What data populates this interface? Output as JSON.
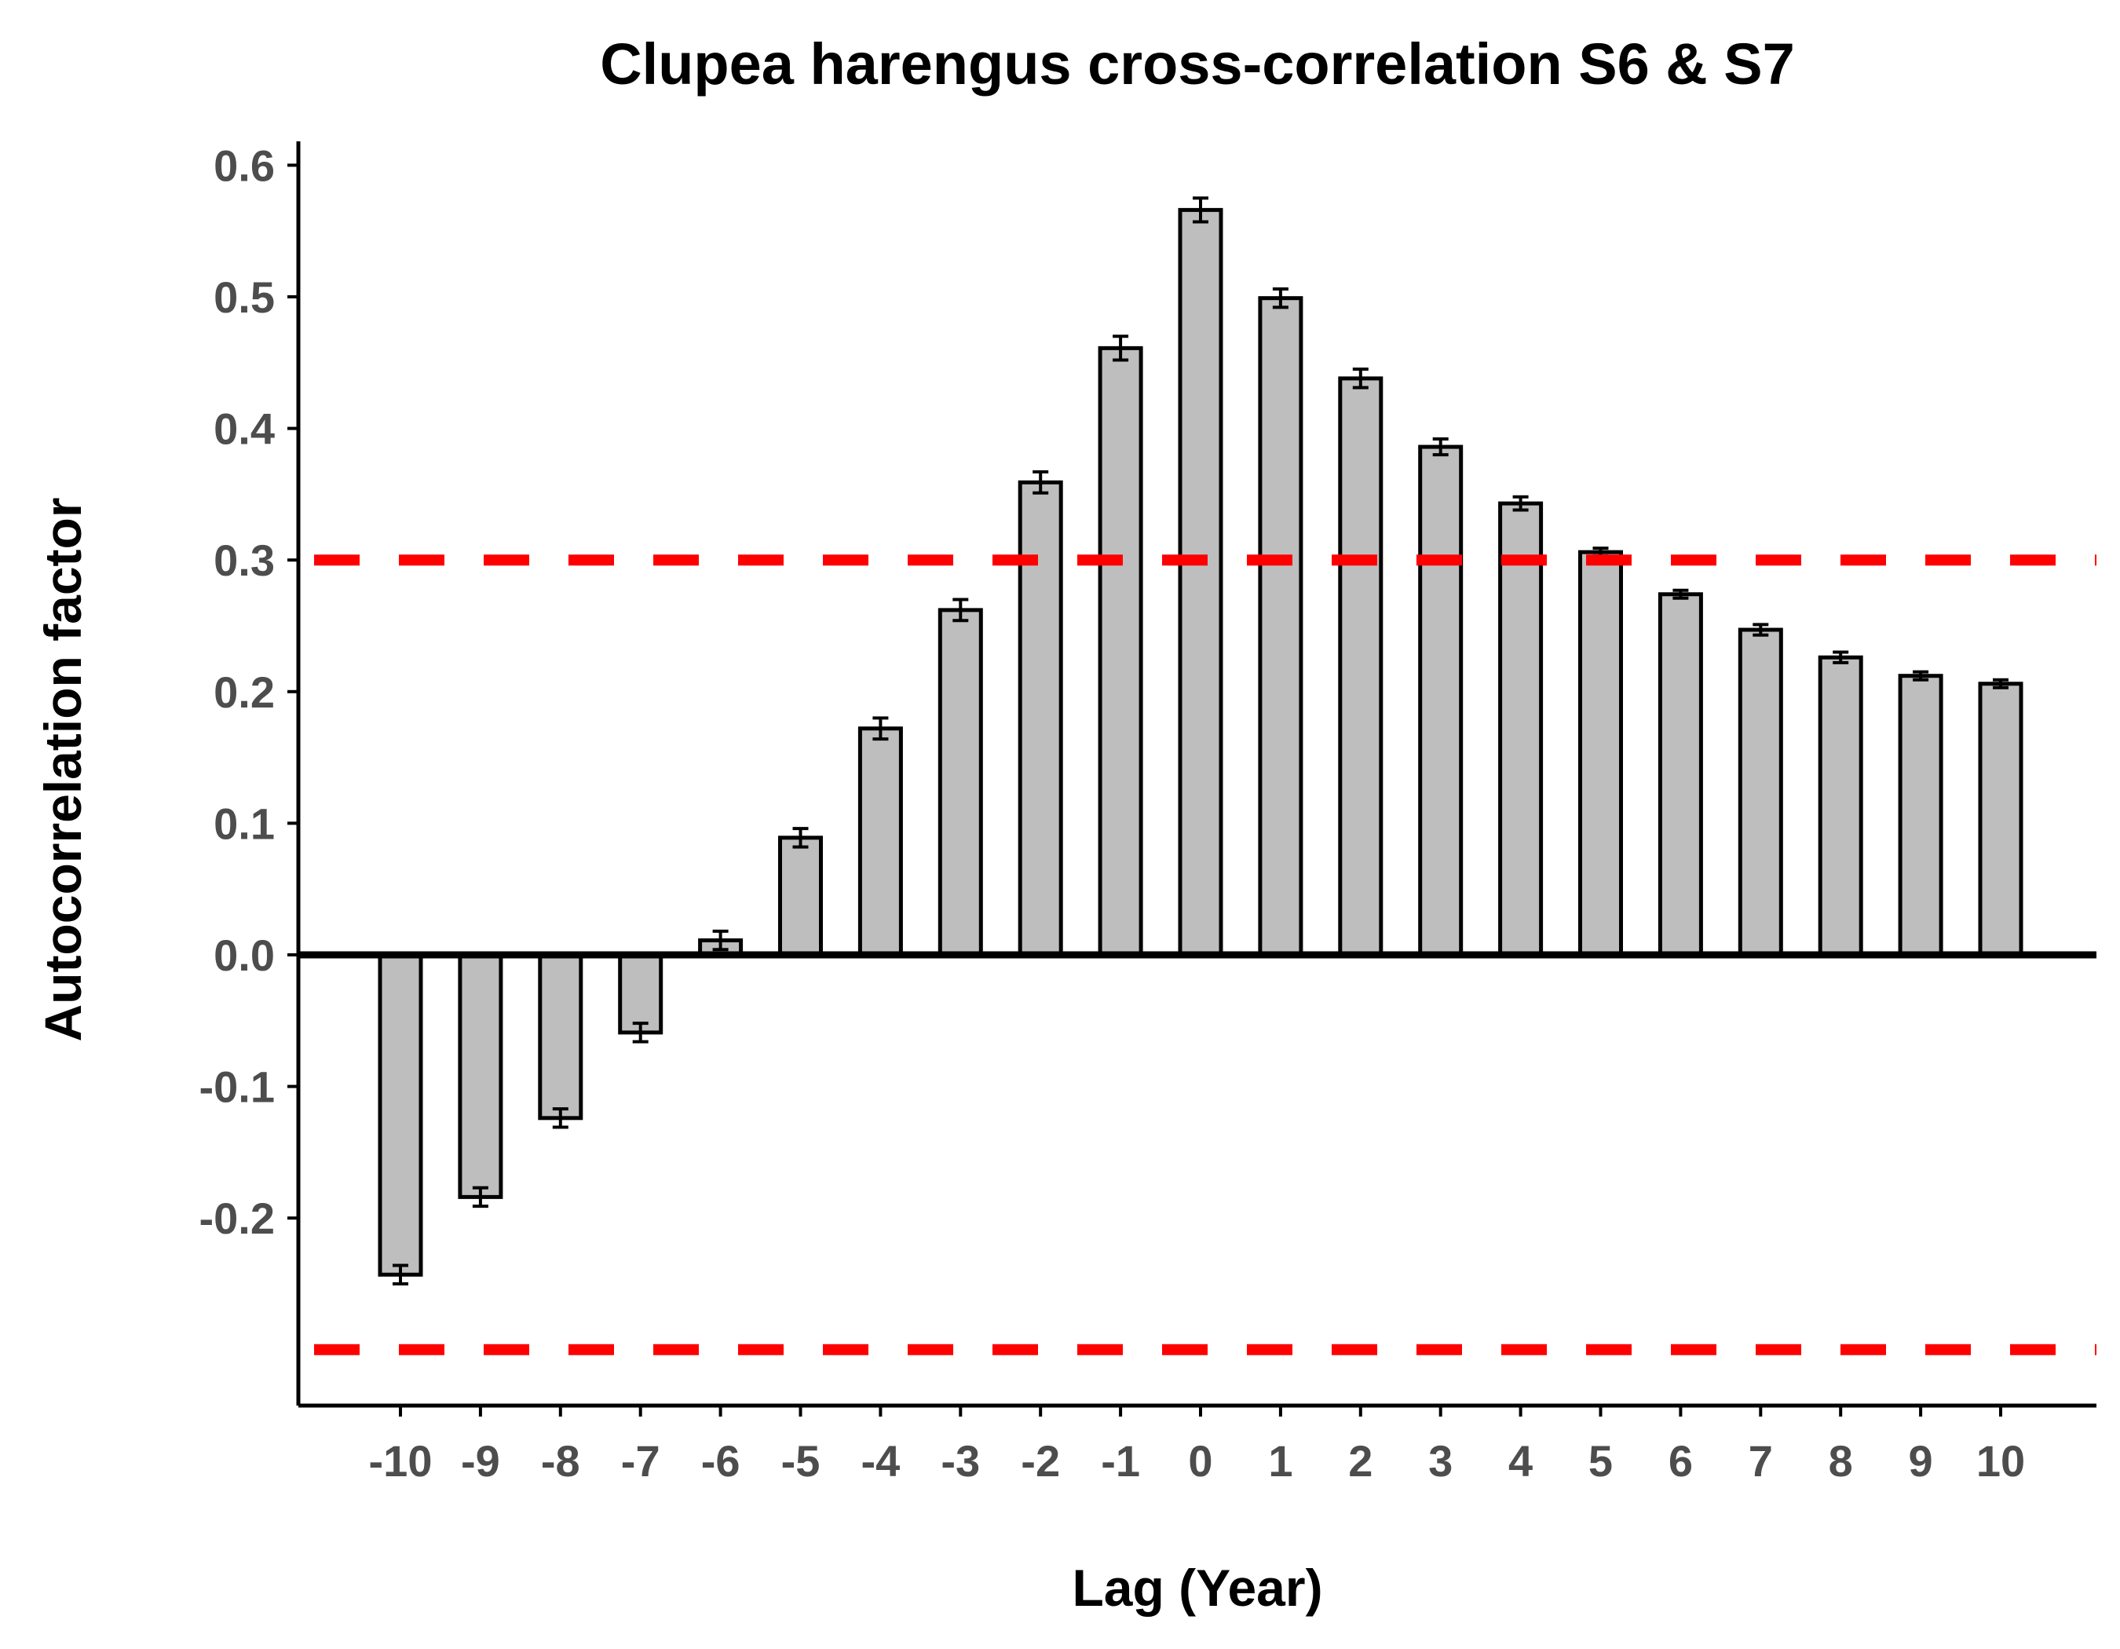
{
  "chart_data": {
    "type": "bar",
    "title": "Clupea harengus cross-correlation S6 & S7",
    "xlabel": "Lag (Year)",
    "ylabel": "Autocorrelation factor",
    "categories": [
      "-10",
      "-9",
      "-8",
      "-7",
      "-6",
      "-5",
      "-4",
      "-3",
      "-2",
      "-1",
      "0",
      "1",
      "2",
      "3",
      "4",
      "5",
      "6",
      "7",
      "8",
      "9",
      "10"
    ],
    "values": [
      -0.243,
      -0.184,
      -0.124,
      -0.059,
      0.011,
      0.089,
      0.172,
      0.262,
      0.359,
      0.461,
      0.566,
      0.499,
      0.438,
      0.386,
      0.343,
      0.306,
      0.274,
      0.247,
      0.226,
      0.212,
      0.206
    ],
    "errors": [
      0.007,
      0.007,
      0.007,
      0.007,
      0.007,
      0.007,
      0.008,
      0.008,
      0.008,
      0.009,
      0.009,
      0.007,
      0.007,
      0.006,
      0.005,
      0.003,
      0.003,
      0.004,
      0.004,
      0.003,
      0.003
    ],
    "yticks": [
      "0.6",
      "0.5",
      "0.4",
      "0.3",
      "0.2",
      "0.1",
      "0.0",
      "-0.1",
      "-0.2"
    ],
    "ylim": [
      -0.34,
      0.62
    ],
    "reference_lines": [
      0.3,
      -0.3
    ],
    "colors": {
      "bar_fill": "#bebebe",
      "bar_stroke": "#000000",
      "reference_line": "#ff0000",
      "tick_text": "#4d4d4d"
    },
    "grid": false
  }
}
